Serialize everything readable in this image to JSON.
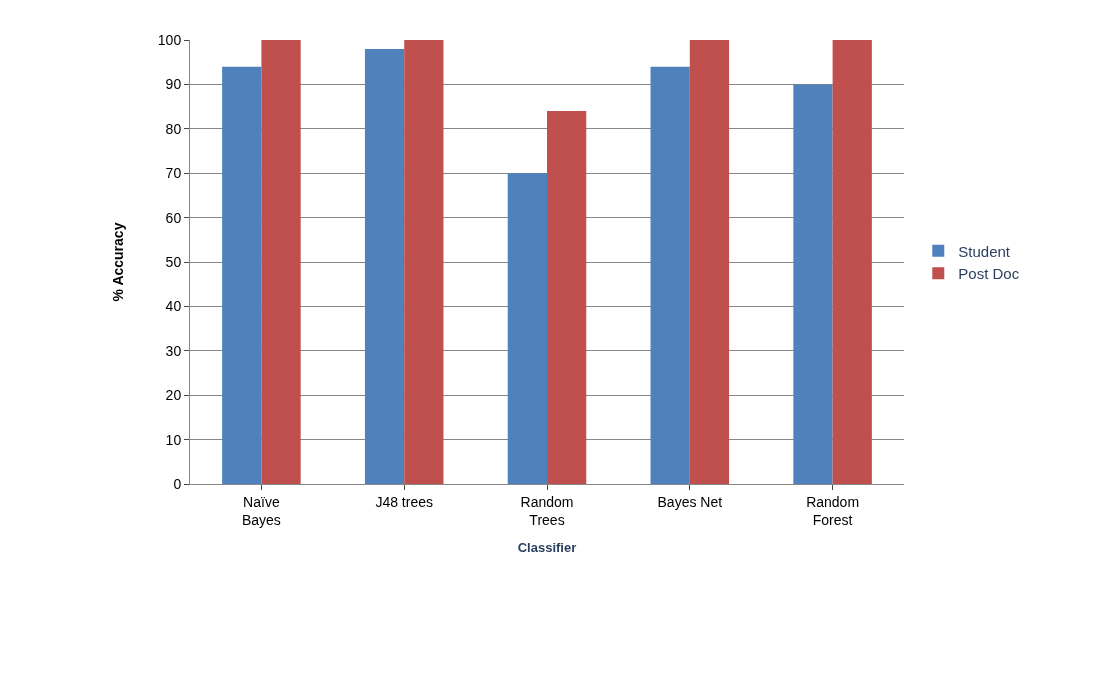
{
  "chart_data": {
    "type": "bar",
    "xlabel": "Classifier",
    "ylabel": "% Accuracy",
    "categories": [
      "Naïve Bayes",
      "J48 trees",
      "Random Trees",
      "Bayes Net",
      "Random Forest"
    ],
    "series": [
      {
        "name": "Student",
        "color": "#4f81bd",
        "values": [
          94,
          98,
          70,
          94,
          90
        ]
      },
      {
        "name": "Post Doc",
        "color": "#c0504d",
        "values": [
          100,
          100,
          84,
          100,
          100
        ]
      }
    ],
    "ylim": [
      0,
      100
    ],
    "yticks": [
      0,
      10,
      20,
      30,
      40,
      50,
      60,
      70,
      80,
      90,
      100
    ],
    "grid": "y",
    "legend": "right"
  }
}
